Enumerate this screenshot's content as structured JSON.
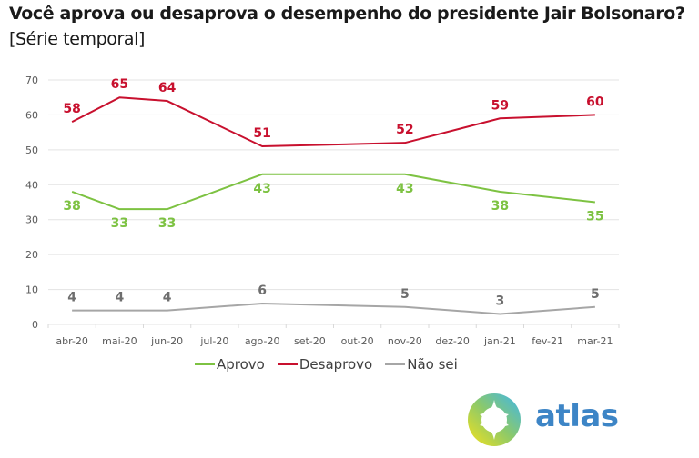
{
  "title": "Você aprova ou desaprova o desempenho do presidente Jair Bolsonaro?",
  "subtitle": "[Série temporal]",
  "logo": {
    "text": "atlas",
    "icon": "compass-logo-icon"
  },
  "chart_data": {
    "type": "line",
    "title": "Você aprova ou desaprova o desempenho do presidente Jair Bolsonaro?",
    "subtitle": "[Série temporal]",
    "xlabel": "",
    "ylabel": "",
    "categories": [
      "abr-20",
      "mai-20",
      "jun-20",
      "jul-20",
      "ago-20",
      "set-20",
      "out-20",
      "nov-20",
      "dez-20",
      "jan-21",
      "fev-21",
      "mar-21"
    ],
    "ylim": [
      0,
      70
    ],
    "yticks": [
      0,
      10,
      20,
      30,
      40,
      50,
      60,
      70
    ],
    "grid": true,
    "legend_position": "bottom",
    "series": [
      {
        "name": "Aprovo",
        "color": "#7dc242",
        "label_position": "below",
        "values": [
          38,
          33,
          33,
          null,
          43,
          null,
          null,
          43,
          null,
          38,
          null,
          35
        ]
      },
      {
        "name": "Desaprovo",
        "color": "#c8102e",
        "label_position": "above",
        "values": [
          58,
          65,
          64,
          null,
          51,
          null,
          null,
          52,
          null,
          59,
          null,
          60
        ]
      },
      {
        "name": "Não sei",
        "color": "#a6a6a6",
        "label_color": "#6e6e6e",
        "label_position": "above",
        "values": [
          4,
          4,
          4,
          null,
          6,
          null,
          null,
          5,
          null,
          3,
          null,
          5
        ]
      }
    ]
  }
}
